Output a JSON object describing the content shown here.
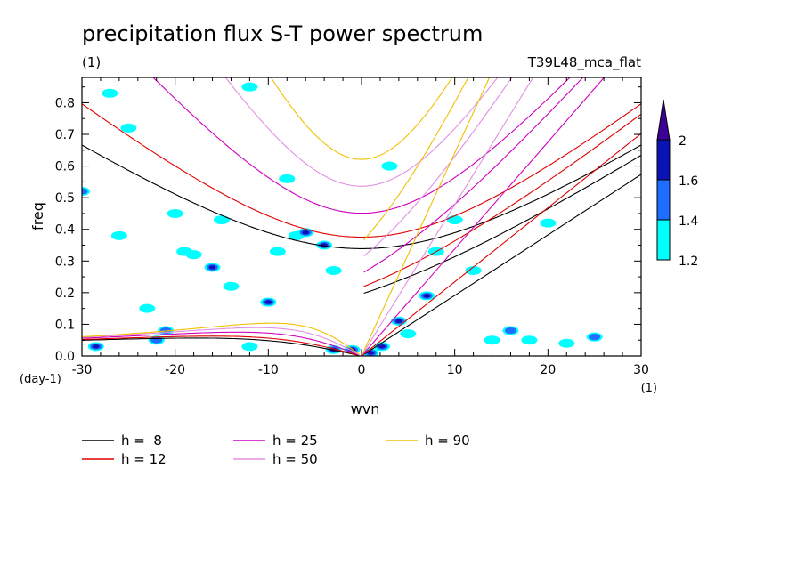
{
  "chart_data": {
    "type": "line",
    "title": "precipitation flux S-T power spectrum",
    "subtitle_left": "(1)",
    "subtitle_right": "T39L48_mca_flat",
    "xlabel": "wvn",
    "ylabel": "freq",
    "x_unit_label": "(1)",
    "y_unit_label": "(day-1)",
    "xlim": [
      -30,
      30
    ],
    "ylim": [
      0,
      0.88
    ],
    "x_ticks": [
      "-30",
      "-20",
      "-10",
      "0",
      "10",
      "20",
      "30"
    ],
    "y_ticks": [
      "0.0",
      "0.1",
      "0.2",
      "0.3",
      "0.4",
      "0.5",
      "0.6",
      "0.7",
      "0.8"
    ],
    "colorbar": {
      "labels": [
        "1.2",
        "1.4",
        "1.6",
        "2"
      ],
      "colors": [
        "#00ffff",
        "#1e6eff",
        "#0a14b4",
        "#3c0096"
      ]
    },
    "series": [
      {
        "name": "h =  8",
        "h": 8,
        "color": "#000000"
      },
      {
        "name": "h = 12",
        "h": 12,
        "color": "#e00000"
      },
      {
        "name": "h = 25",
        "h": 25,
        "color": "#d000c0"
      },
      {
        "name": "h = 50",
        "h": 50,
        "color": "#e090e0"
      },
      {
        "name": "h = 90",
        "h": 90,
        "color": "#f0c000"
      }
    ],
    "contour_blobs": [
      {
        "x": -30,
        "y": 0.52,
        "level": 2
      },
      {
        "x": -28.5,
        "y": 0.03,
        "level": 3
      },
      {
        "x": -26,
        "y": 0.38,
        "level": 1
      },
      {
        "x": -25,
        "y": 0.72,
        "level": 1
      },
      {
        "x": -23,
        "y": 0.15,
        "level": 1
      },
      {
        "x": -22,
        "y": 0.05,
        "level": 2
      },
      {
        "x": -21,
        "y": 0.08,
        "level": 2
      },
      {
        "x": -20,
        "y": 0.45,
        "level": 1
      },
      {
        "x": -19,
        "y": 0.33,
        "level": 1
      },
      {
        "x": -18,
        "y": 0.32,
        "level": 1
      },
      {
        "x": -16,
        "y": 0.28,
        "level": 3
      },
      {
        "x": -15,
        "y": 0.43,
        "level": 1
      },
      {
        "x": -14,
        "y": 0.22,
        "level": 1
      },
      {
        "x": -12,
        "y": 0.03,
        "level": 1
      },
      {
        "x": -10,
        "y": 0.17,
        "level": 3
      },
      {
        "x": -9,
        "y": 0.33,
        "level": 1
      },
      {
        "x": -8,
        "y": 0.56,
        "level": 1
      },
      {
        "x": -7,
        "y": 0.38,
        "level": 1
      },
      {
        "x": -6,
        "y": 0.39,
        "level": 3
      },
      {
        "x": -4,
        "y": 0.35,
        "level": 4
      },
      {
        "x": -3,
        "y": 0.02,
        "level": 3
      },
      {
        "x": -1,
        "y": 0.02,
        "level": 3
      },
      {
        "x": 1,
        "y": 0.01,
        "level": 4
      },
      {
        "x": 2.2,
        "y": 0.03,
        "level": 4
      },
      {
        "x": 4,
        "y": 0.11,
        "level": 3
      },
      {
        "x": 5,
        "y": 0.07,
        "level": 1
      },
      {
        "x": 7,
        "y": 0.19,
        "level": 3
      },
      {
        "x": 8,
        "y": 0.33,
        "level": 1
      },
      {
        "x": 10,
        "y": 0.43,
        "level": 1
      },
      {
        "x": 12,
        "y": 0.27,
        "level": 1
      },
      {
        "x": 14,
        "y": 0.05,
        "level": 1
      },
      {
        "x": 16,
        "y": 0.08,
        "level": 2
      },
      {
        "x": 18,
        "y": 0.05,
        "level": 1
      },
      {
        "x": 20,
        "y": 0.42,
        "level": 1
      },
      {
        "x": 22,
        "y": 0.04,
        "level": 1
      },
      {
        "x": 25,
        "y": 0.06,
        "level": 2
      },
      {
        "x": -27,
        "y": 0.83,
        "level": 1
      },
      {
        "x": -12,
        "y": 0.85,
        "level": 1
      },
      {
        "x": -3,
        "y": 0.27,
        "level": 1
      },
      {
        "x": 3,
        "y": 0.6,
        "level": 1
      }
    ]
  },
  "legend": {
    "items": [
      {
        "label": "h =  8",
        "color": "#000000"
      },
      {
        "label": "h = 12",
        "color": "#e00000"
      },
      {
        "label": "h = 25",
        "color": "#d000c0"
      },
      {
        "label": "h = 50",
        "color": "#e090e0"
      },
      {
        "label": "h = 90",
        "color": "#f0c000"
      }
    ]
  }
}
